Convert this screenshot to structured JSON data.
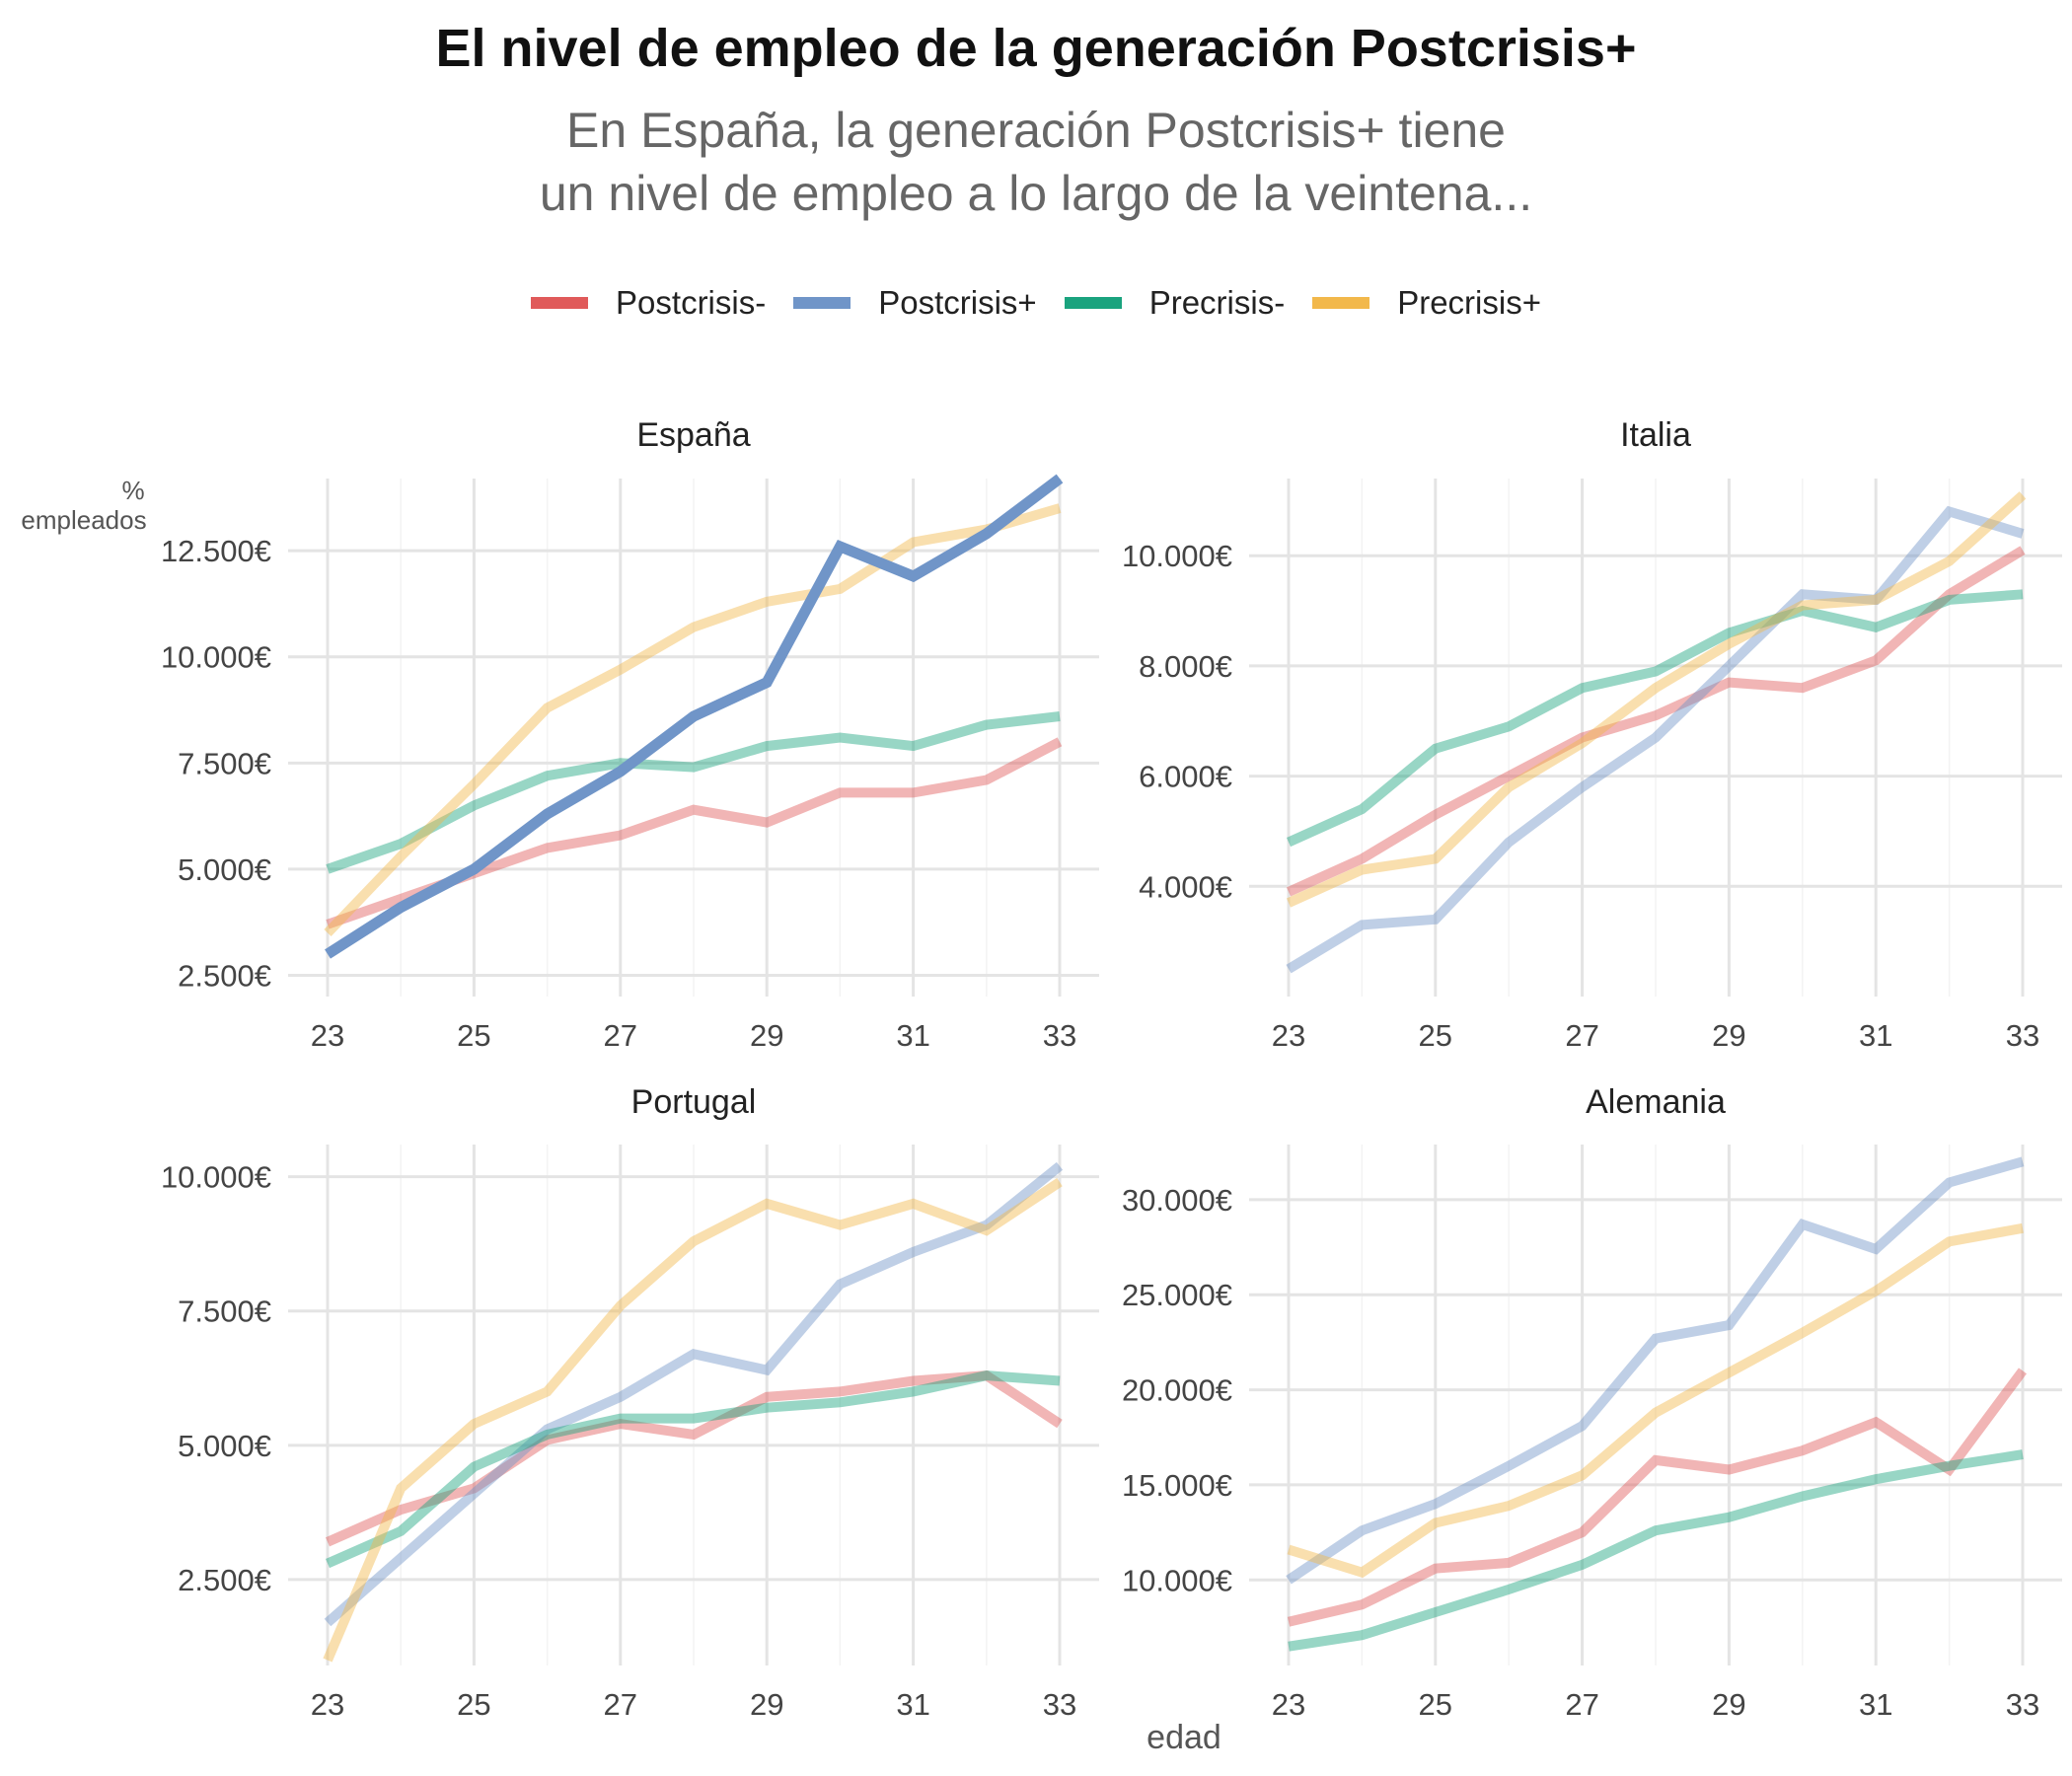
{
  "title": "El nivel de empleo de la generación Postcrisis+",
  "subtitle_lines": [
    "En España, la generación Postcrisis+ tiene",
    "un nivel de empleo a lo largo de la veintena..."
  ],
  "legend": [
    {
      "name": "Postcrisis-",
      "color": "#e05a5a"
    },
    {
      "name": "Postcrisis+",
      "color": "#7095c8"
    },
    {
      "name": "Precrisis-",
      "color": "#1aa37e"
    },
    {
      "name": "Precrisis+",
      "color": "#f2b84b"
    }
  ],
  "ylabel_lines": [
    "%",
    "empleados"
  ],
  "xlabel": "edad",
  "highlight_series": "Postcrisis+",
  "highlight_panel": "España",
  "chart_data": [
    {
      "type": "line",
      "title": "España",
      "x": [
        23,
        24,
        25,
        26,
        27,
        28,
        29,
        30,
        31,
        32,
        33
      ],
      "xticks": [
        23,
        25,
        27,
        29,
        31,
        33
      ],
      "yticks": [
        2500,
        5000,
        7500,
        10000,
        12500
      ],
      "ytick_labels": [
        "2.500€",
        "5.000€",
        "7.500€",
        "10.000€",
        "12.500€"
      ],
      "ylim": [
        2000,
        14200
      ],
      "series": [
        {
          "name": "Postcrisis-",
          "values": [
            3700,
            4300,
            4900,
            5500,
            5800,
            6400,
            6100,
            6800,
            6800,
            7100,
            8000
          ]
        },
        {
          "name": "Postcrisis+",
          "values": [
            3000,
            4100,
            5000,
            6300,
            7300,
            8600,
            9400,
            12600,
            11900,
            12900,
            14200
          ]
        },
        {
          "name": "Precrisis-",
          "values": [
            5000,
            5600,
            6500,
            7200,
            7500,
            7400,
            7900,
            8100,
            7900,
            8400,
            8600
          ]
        },
        {
          "name": "Precrisis+",
          "values": [
            3500,
            5300,
            7000,
            8800,
            9700,
            10700,
            11300,
            11600,
            12700,
            13000,
            13500
          ]
        }
      ]
    },
    {
      "type": "line",
      "title": "Italia",
      "x": [
        23,
        24,
        25,
        26,
        27,
        28,
        29,
        30,
        31,
        32,
        33
      ],
      "xticks": [
        23,
        25,
        27,
        29,
        31,
        33
      ],
      "yticks": [
        4000,
        6000,
        8000,
        10000
      ],
      "ytick_labels": [
        "4.000€",
        "6.000€",
        "8.000€",
        "10.000€"
      ],
      "ylim": [
        2000,
        11400
      ],
      "series": [
        {
          "name": "Postcrisis-",
          "values": [
            3900,
            4500,
            5300,
            6000,
            6700,
            7100,
            7700,
            7600,
            8100,
            9300,
            10100
          ]
        },
        {
          "name": "Postcrisis+",
          "values": [
            2500,
            3300,
            3400,
            4800,
            5800,
            6700,
            8000,
            9300,
            9200,
            10800,
            10400
          ]
        },
        {
          "name": "Precrisis-",
          "values": [
            4800,
            5400,
            6500,
            6900,
            7600,
            7900,
            8600,
            9000,
            8700,
            9200,
            9300
          ]
        },
        {
          "name": "Precrisis+",
          "values": [
            3700,
            4300,
            4500,
            5800,
            6600,
            7600,
            8400,
            9100,
            9200,
            9900,
            11100
          ]
        }
      ]
    },
    {
      "type": "line",
      "title": "Portugal",
      "x": [
        23,
        24,
        25,
        26,
        27,
        28,
        29,
        30,
        31,
        32,
        33
      ],
      "xticks": [
        23,
        25,
        27,
        29,
        31,
        33
      ],
      "yticks": [
        2500,
        5000,
        7500,
        10000
      ],
      "ytick_labels": [
        "2.500€",
        "5.000€",
        "7.500€",
        "10.000€"
      ],
      "ylim": [
        900,
        10600
      ],
      "series": [
        {
          "name": "Postcrisis-",
          "values": [
            3200,
            3800,
            4200,
            5100,
            5400,
            5200,
            5900,
            6000,
            6200,
            6300,
            5400
          ]
        },
        {
          "name": "Postcrisis+",
          "values": [
            1700,
            2900,
            4100,
            5300,
            5900,
            6700,
            6400,
            8000,
            8600,
            9100,
            10200
          ]
        },
        {
          "name": "Precrisis-",
          "values": [
            2800,
            3400,
            4600,
            5200,
            5500,
            5500,
            5700,
            5800,
            6000,
            6300,
            6200
          ]
        },
        {
          "name": "Precrisis+",
          "values": [
            1000,
            4200,
            5400,
            6000,
            7600,
            8800,
            9500,
            9100,
            9500,
            9000,
            9900
          ]
        }
      ]
    },
    {
      "type": "line",
      "title": "Alemania",
      "x": [
        23,
        24,
        25,
        26,
        27,
        28,
        29,
        30,
        31,
        32,
        33
      ],
      "xticks": [
        23,
        25,
        27,
        29,
        31,
        33
      ],
      "yticks": [
        10000,
        15000,
        20000,
        25000,
        30000
      ],
      "ytick_labels": [
        "10.000€",
        "15.000€",
        "20.000€",
        "25.000€",
        "30.000€"
      ],
      "ylim": [
        5500,
        32900
      ],
      "series": [
        {
          "name": "Postcrisis-",
          "values": [
            7800,
            8700,
            10600,
            10900,
            12500,
            16300,
            15800,
            16800,
            18300,
            15800,
            21000
          ]
        },
        {
          "name": "Postcrisis+",
          "values": [
            10000,
            12600,
            14000,
            16000,
            18100,
            22700,
            23400,
            28700,
            27400,
            30900,
            32000
          ]
        },
        {
          "name": "Precrisis-",
          "values": [
            6500,
            7100,
            8300,
            9500,
            10800,
            12600,
            13300,
            14400,
            15300,
            16000,
            16600
          ]
        },
        {
          "name": "Precrisis+",
          "values": [
            11600,
            10400,
            13000,
            13900,
            15500,
            18800,
            20900,
            23000,
            25200,
            27800,
            28500
          ]
        }
      ]
    }
  ]
}
